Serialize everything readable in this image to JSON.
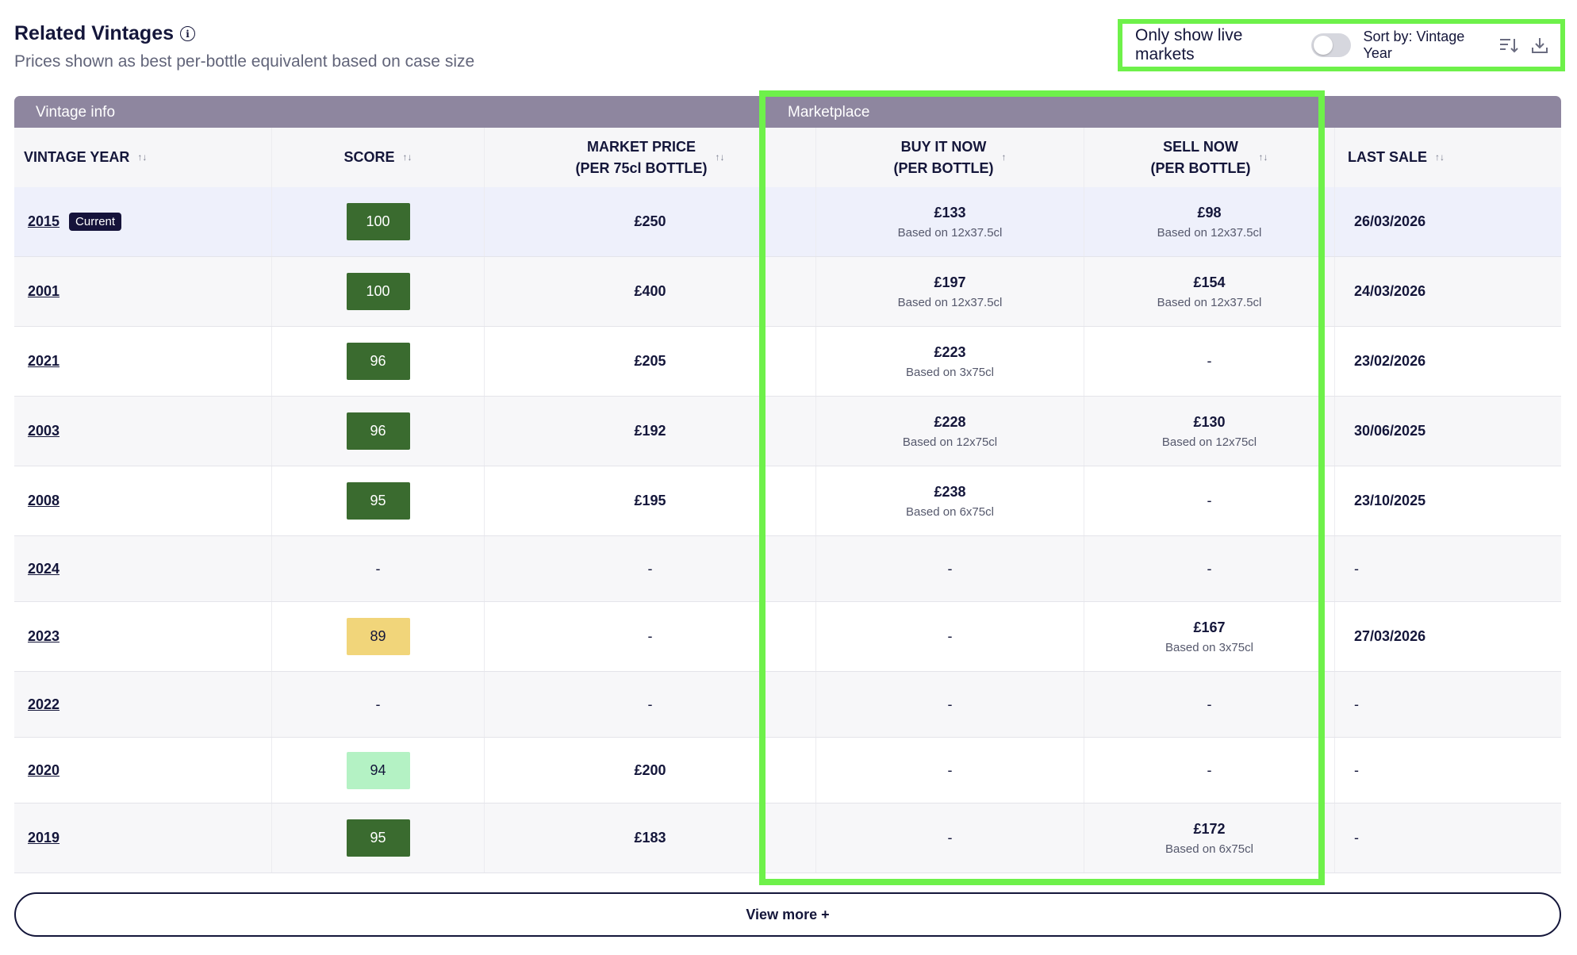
{
  "header": {
    "title": "Related Vintages",
    "subtitle": "Prices shown as best per-bottle equivalent based on case size",
    "info_icon": "info-icon"
  },
  "controls": {
    "live_label": "Only show live markets",
    "live_toggle_on": false,
    "sort_label": "Sort by: Vintage Year",
    "sort_icon": "sort-descending-icon",
    "download_icon": "download-icon"
  },
  "groups": {
    "vintage_info": "Vintage info",
    "marketplace": "Marketplace"
  },
  "columns": [
    {
      "line1": "VINTAGE YEAR",
      "line2": "",
      "sort": "↑↓"
    },
    {
      "line1": "SCORE",
      "line2": "",
      "sort": "↑↓"
    },
    {
      "line1": "MARKET PRICE",
      "line2": "(PER 75cl BOTTLE)",
      "sort": "↑↓"
    },
    {
      "line1": "BUY IT NOW",
      "line2": "(PER BOTTLE)",
      "sort": "↑"
    },
    {
      "line1": "SELL NOW",
      "line2": "(PER BOTTLE)",
      "sort": "↑↓"
    },
    {
      "line1": "LAST SALE",
      "line2": "",
      "sort": "↑↓"
    }
  ],
  "current_badge": "Current",
  "rows": [
    {
      "year": "2015",
      "current": true,
      "score": "100",
      "score_style": "dark",
      "market": "£250",
      "buy": "£133",
      "buy_sub": "Based on 12x37.5cl",
      "sell": "£98",
      "sell_sub": "Based on 12x37.5cl",
      "last": "26/03/2026"
    },
    {
      "year": "2001",
      "current": false,
      "score": "100",
      "score_style": "dark",
      "market": "£400",
      "buy": "£197",
      "buy_sub": "Based on 12x37.5cl",
      "sell": "£154",
      "sell_sub": "Based on 12x37.5cl",
      "last": "24/03/2026"
    },
    {
      "year": "2021",
      "current": false,
      "score": "96",
      "score_style": "dark",
      "market": "£205",
      "buy": "£223",
      "buy_sub": "Based on 3x75cl",
      "sell": "-",
      "sell_sub": "",
      "last": "23/02/2026"
    },
    {
      "year": "2003",
      "current": false,
      "score": "96",
      "score_style": "dark",
      "market": "£192",
      "buy": "£228",
      "buy_sub": "Based on 12x75cl",
      "sell": "£130",
      "sell_sub": "Based on 12x75cl",
      "last": "30/06/2025"
    },
    {
      "year": "2008",
      "current": false,
      "score": "95",
      "score_style": "dark",
      "market": "£195",
      "buy": "£238",
      "buy_sub": "Based on 6x75cl",
      "sell": "-",
      "sell_sub": "",
      "last": "23/10/2025"
    },
    {
      "year": "2024",
      "current": false,
      "score": "-",
      "score_style": "none",
      "market": "-",
      "buy": "-",
      "buy_sub": "",
      "sell": "-",
      "sell_sub": "",
      "last": "-"
    },
    {
      "year": "2023",
      "current": false,
      "score": "89",
      "score_style": "yellow",
      "market": "-",
      "buy": "-",
      "buy_sub": "",
      "sell": "£167",
      "sell_sub": "Based on 3x75cl",
      "last": "27/03/2026"
    },
    {
      "year": "2022",
      "current": false,
      "score": "-",
      "score_style": "none",
      "market": "-",
      "buy": "-",
      "buy_sub": "",
      "sell": "-",
      "sell_sub": "",
      "last": "-"
    },
    {
      "year": "2020",
      "current": false,
      "score": "94",
      "score_style": "light",
      "market": "£200",
      "buy": "-",
      "buy_sub": "",
      "sell": "-",
      "sell_sub": "",
      "last": "-"
    },
    {
      "year": "2019",
      "current": false,
      "score": "95",
      "score_style": "dark",
      "market": "£183",
      "buy": "-",
      "buy_sub": "",
      "sell": "£172",
      "sell_sub": "Based on 6x75cl",
      "last": "-"
    }
  ],
  "score_colors": {
    "dark": {
      "bg": "#3a6b2f",
      "fg": "#ffffff"
    },
    "light": {
      "bg": "#b4f2c4",
      "fg": "#14163a"
    },
    "yellow": {
      "bg": "#f1d57a",
      "fg": "#14163a"
    }
  },
  "view_more_label": "View more +",
  "highlight_color": "#6ef14a"
}
